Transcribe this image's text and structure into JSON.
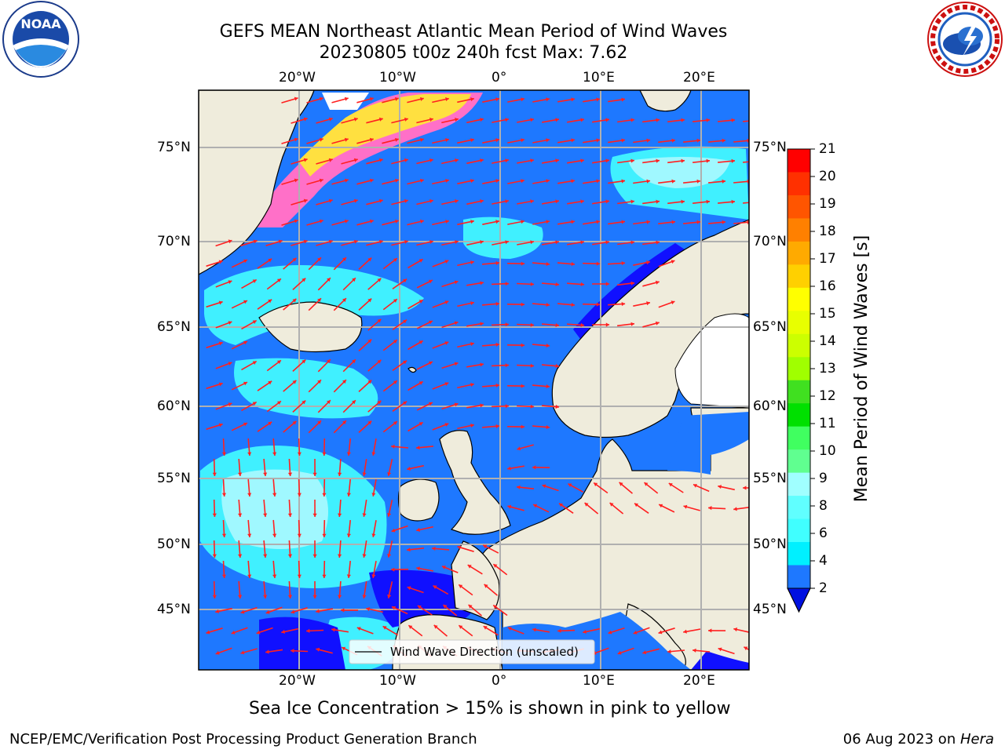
{
  "header": {
    "title_line1": "GEFS MEAN Northeast Atlantic Mean Period of Wind Waves",
    "title_line2": "20230805 t00z 240h fcst   Max: 7.62",
    "left_logo_text": "NOAA",
    "left_logo_ring": "NATIONAL OCEANIC AND ATMOSPHERIC ADMINISTRATION · U.S. DEPARTMENT OF COMMERCE",
    "right_logo_ring": "NATIONAL WEATHER SERVICE"
  },
  "map": {
    "longitude_ticks": [
      "20°W",
      "10°W",
      "0°",
      "10°E",
      "20°E"
    ],
    "latitude_ticks": [
      "75°N",
      "70°N",
      "65°N",
      "60°N",
      "55°N",
      "50°N",
      "45°N"
    ],
    "legend_label": "Wind Wave Direction (unscaled)",
    "colors": {
      "land": "#efecdc",
      "ocean_low": "#1e78ff",
      "ocean_very_low": "#1010ff",
      "cyan_4_6": "#00e8ff",
      "cyan_6_8": "#40f0ff",
      "cyan_8_9": "#a0f8ff",
      "ice_pink": "#ff70c8",
      "ice_yellow": "#ffe040",
      "arrow": "#ff2020",
      "grid": "#b0b0b0"
    }
  },
  "colorbar": {
    "label": "Mean Period of Wind Waves [s]",
    "ticks": [
      "21",
      "20",
      "19",
      "18",
      "17",
      "16",
      "15",
      "14",
      "13",
      "12",
      "11",
      "10",
      "9",
      "8",
      "6",
      "4",
      "2"
    ],
    "colors": [
      "#ff0000",
      "#ff3000",
      "#ff5500",
      "#ff8000",
      "#ffaa00",
      "#ffd000",
      "#ffff00",
      "#e8ff00",
      "#ccff00",
      "#a0ff00",
      "#40e020",
      "#00e000",
      "#40ff60",
      "#60ff90",
      "#a0ffff",
      "#60ffff",
      "#40ffff",
      "#00f0ff",
      "#1e78ff"
    ],
    "extend_color": "#0010e0"
  },
  "caption": "Sea Ice Concentration > 15% is shown in pink to yellow",
  "footer": {
    "left": "NCEP/EMC/Verification Post Processing Product Generation Branch",
    "right_prefix": "06 Aug 2023 on ",
    "right_host": "Hera"
  }
}
